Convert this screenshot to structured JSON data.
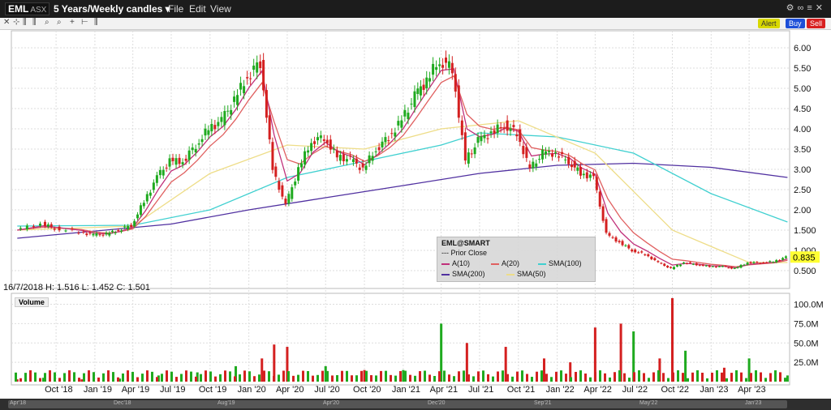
{
  "window": {
    "symbol": "EML",
    "exchange": "ASX",
    "period": "5 Years/Weekly candles",
    "menu": [
      "File",
      "Edit",
      "View"
    ]
  },
  "toolbar_icons": [
    "close-icon",
    "crosshair-icon",
    "zoom-in-icon",
    "zoom-out-icon",
    "cursor-icon",
    "drawing-icon"
  ],
  "actions": {
    "alert": "Alert",
    "buy": "Buy",
    "sell": "Sell"
  },
  "colors": {
    "up_candle": "#1faa1f",
    "down_candle": "#d42020",
    "a10": "#c0307a",
    "a20": "#e06060",
    "sma100": "#40d0d0",
    "sma200": "#5030a0",
    "sma50": "#eedd88",
    "price_tag": "#ffff33"
  },
  "legend": {
    "title": "EML@SMART",
    "prior_close": "Prior Close",
    "items": [
      "A(10)",
      "A(20)",
      "SMA(100)",
      "SMA(200)",
      "SMA(50)"
    ]
  },
  "ohlc_readout": "16/7/2018  H: 1.516  L: 1.452  C: 1.501",
  "volume_label": "Volume",
  "price_axis": [
    "6.00",
    "5.50",
    "5.00",
    "4.50",
    "4.00",
    "3.50",
    "3.00",
    "2.50",
    "2.00",
    "1.500",
    "1.000",
    "0.500"
  ],
  "last_price": "0.835",
  "volume_axis": [
    "100.0M",
    "75.0M",
    "50.0M",
    "25.0M"
  ],
  "time_axis": [
    "Oct '18",
    "Jan '19",
    "Apr '19",
    "Jul '19",
    "Oct '19",
    "Jan '20",
    "Apr '20",
    "Jul '20",
    "Oct '20",
    "Jan '21",
    "Apr '21",
    "Jul '21",
    "Oct '21",
    "Jan '22",
    "Apr '22",
    "Jul '22",
    "Oct '22",
    "Jan '23",
    "Apr '23"
  ],
  "scroll_axis": [
    "Apr'18",
    "Dec'18",
    "Aug'19",
    "Apr'20",
    "Dec'20",
    "Sep'21",
    "May'22",
    "Jan'23"
  ],
  "chart_data": {
    "type": "candlestick",
    "price_range": [
      0.3,
      6.3
    ],
    "volume_range": [
      0,
      110
    ],
    "close_key": [
      "date",
      "close"
    ],
    "close": [
      [
        "2018-07",
        1.5
      ],
      [
        "2018-09",
        1.66
      ],
      [
        "2018-10",
        1.55
      ],
      [
        "2018-12",
        1.45
      ],
      [
        "2019-01",
        1.38
      ],
      [
        "2019-02",
        1.4
      ],
      [
        "2019-03",
        1.5
      ],
      [
        "2019-04",
        1.62
      ],
      [
        "2019-05",
        2.2
      ],
      [
        "2019-06",
        2.8
      ],
      [
        "2019-07",
        3.2
      ],
      [
        "2019-08",
        3.2
      ],
      [
        "2019-09",
        3.6
      ],
      [
        "2019-10",
        4.0
      ],
      [
        "2019-11",
        4.2
      ],
      [
        "2019-12",
        4.7
      ],
      [
        "2020-01",
        5.3
      ],
      [
        "2020-02",
        5.65
      ],
      [
        "2020-03",
        3.0
      ],
      [
        "2020-04",
        2.1
      ],
      [
        "2020-05",
        3.0
      ],
      [
        "2020-06",
        3.7
      ],
      [
        "2020-07",
        3.8
      ],
      [
        "2020-08",
        3.3
      ],
      [
        "2020-09",
        3.25
      ],
      [
        "2020-10",
        3.0
      ],
      [
        "2020-11",
        3.5
      ],
      [
        "2020-12",
        3.8
      ],
      [
        "2021-01",
        4.2
      ],
      [
        "2021-02",
        4.8
      ],
      [
        "2021-03",
        5.2
      ],
      [
        "2021-04",
        5.7
      ],
      [
        "2021-05",
        5.5
      ],
      [
        "2021-06",
        3.2
      ],
      [
        "2021-07",
        3.7
      ],
      [
        "2021-08",
        3.9
      ],
      [
        "2021-09",
        4.1
      ],
      [
        "2021-10",
        3.9
      ],
      [
        "2021-11",
        3.0
      ],
      [
        "2021-12",
        3.4
      ],
      [
        "2022-01",
        3.4
      ],
      [
        "2022-02",
        3.2
      ],
      [
        "2022-03",
        2.9
      ],
      [
        "2022-04",
        2.8
      ],
      [
        "2022-05",
        1.4
      ],
      [
        "2022-06",
        1.2
      ],
      [
        "2022-07",
        1.0
      ],
      [
        "2022-08",
        0.9
      ],
      [
        "2022-09",
        0.7
      ],
      [
        "2022-10",
        0.55
      ],
      [
        "2022-11",
        0.7
      ],
      [
        "2022-12",
        0.65
      ],
      [
        "2023-01",
        0.6
      ],
      [
        "2023-02",
        0.6
      ],
      [
        "2023-03",
        0.55
      ],
      [
        "2023-04",
        0.7
      ],
      [
        "2023-05",
        0.7
      ],
      [
        "2023-06",
        0.72
      ],
      [
        "2023-07",
        0.835
      ]
    ],
    "sma200_key": [
      "date",
      "value"
    ],
    "sma200": [
      [
        "2018-07",
        1.3
      ],
      [
        "2019-07",
        1.65
      ],
      [
        "2020-01",
        2.0
      ],
      [
        "2020-07",
        2.3
      ],
      [
        "2021-01",
        2.6
      ],
      [
        "2021-07",
        2.9
      ],
      [
        "2022-01",
        3.1
      ],
      [
        "2022-07",
        3.15
      ],
      [
        "2023-01",
        3.05
      ],
      [
        "2023-07",
        2.8
      ]
    ],
    "sma100_key": [
      "date",
      "value"
    ],
    "sma100": [
      [
        "2018-07",
        1.6
      ],
      [
        "2019-04",
        1.62
      ],
      [
        "2019-10",
        2.0
      ],
      [
        "2020-04",
        2.8
      ],
      [
        "2020-10",
        3.2
      ],
      [
        "2021-04",
        3.6
      ],
      [
        "2021-07",
        3.9
      ],
      [
        "2022-01",
        3.8
      ],
      [
        "2022-07",
        3.4
      ],
      [
        "2023-01",
        2.4
      ],
      [
        "2023-07",
        1.7
      ]
    ],
    "sma50_key": [
      "date",
      "value"
    ],
    "sma50": [
      [
        "2018-07",
        1.5
      ],
      [
        "2019-04",
        1.6
      ],
      [
        "2019-10",
        2.9
      ],
      [
        "2020-04",
        3.6
      ],
      [
        "2020-10",
        3.5
      ],
      [
        "2021-04",
        4.0
      ],
      [
        "2021-10",
        4.2
      ],
      [
        "2022-04",
        3.4
      ],
      [
        "2022-10",
        1.5
      ],
      [
        "2023-04",
        0.7
      ],
      [
        "2023-07",
        0.7
      ]
    ],
    "volume_note": "weekly volumes in millions",
    "volume_key": [
      "date",
      "volume_m",
      "direction"
    ],
    "volume": [
      [
        "2018-07",
        3,
        "down"
      ],
      [
        "2018-09",
        5,
        "up"
      ],
      [
        "2018-12",
        3,
        "down"
      ],
      [
        "2019-03",
        4,
        "up"
      ],
      [
        "2019-06",
        8,
        "up"
      ],
      [
        "2019-09",
        12,
        "up"
      ],
      [
        "2019-12",
        20,
        "up"
      ],
      [
        "2020-02",
        30,
        "down"
      ],
      [
        "2020-03",
        48,
        "down"
      ],
      [
        "2020-04",
        45,
        "down"
      ],
      [
        "2020-07",
        20,
        "up"
      ],
      [
        "2020-10",
        15,
        "down"
      ],
      [
        "2021-01",
        15,
        "up"
      ],
      [
        "2021-04",
        75,
        "up"
      ],
      [
        "2021-06",
        50,
        "down"
      ],
      [
        "2021-09",
        45,
        "red"
      ],
      [
        "2021-12",
        30,
        "down"
      ],
      [
        "2022-02",
        25,
        "down"
      ],
      [
        "2022-04",
        70,
        "down"
      ],
      [
        "2022-06",
        75,
        "down"
      ],
      [
        "2022-07",
        65,
        "up"
      ],
      [
        "2022-09",
        30,
        "down"
      ],
      [
        "2022-10",
        108,
        "down"
      ],
      [
        "2022-11",
        40,
        "up"
      ],
      [
        "2023-02",
        18,
        "down"
      ],
      [
        "2023-04",
        30,
        "up"
      ],
      [
        "2023-07",
        8,
        "up"
      ]
    ]
  }
}
